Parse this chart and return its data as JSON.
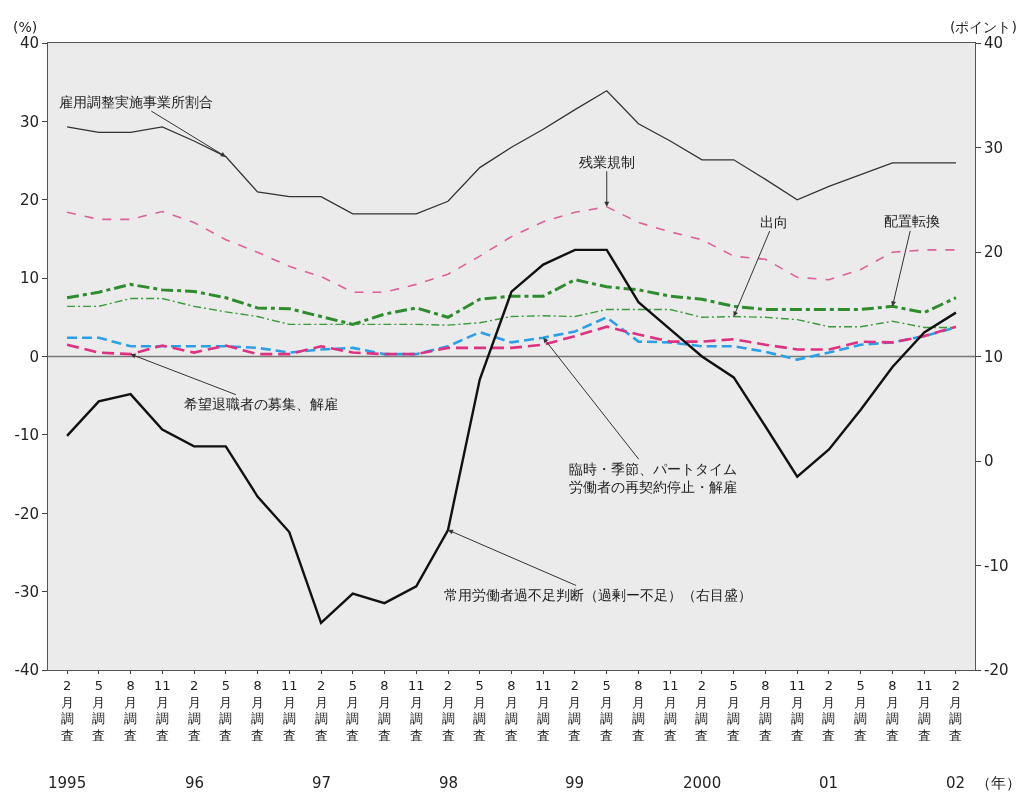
{
  "chart_data": {
    "type": "line",
    "ylabel": "(%)",
    "y2label": "(ポイント)",
    "categories": [
      "2月調査",
      "5月調査",
      "8月調査",
      "11月調査",
      "2月調査",
      "5月調査",
      "8月調査",
      "11月調査",
      "2月調査",
      "5月調査",
      "8月調査",
      "11月調査",
      "2月調査",
      "5月調査",
      "8月調査",
      "11月調査",
      "2月調査",
      "5月調査",
      "8月調査",
      "11月調査",
      "2月調査",
      "5月調査",
      "8月調査",
      "11月調査",
      "2月調査",
      "5月調査",
      "8月調査",
      "11月調査",
      "2月調査"
    ],
    "series": [
      {
        "name": "雇用調整実施事業所割合",
        "color": "#333333",
        "line_style": "solid",
        "values": [
          29.3,
          28.6,
          28.6,
          29.3,
          27.5,
          25.5,
          21,
          20.4,
          20.4,
          18.2,
          18.2,
          18.2,
          19.8,
          24.1,
          26.7,
          29,
          31.5,
          33.9,
          29.7,
          27.5,
          25.1,
          25.1,
          22.6,
          20,
          21.7,
          23.2,
          24.7,
          24.7,
          24.7
        ]
      },
      {
        "name": "残業規制",
        "color": "#e0609a",
        "line_style": "dashed",
        "values": [
          18.4,
          17.5,
          17.5,
          18.5,
          17.1,
          14.9,
          13.3,
          11.5,
          10.2,
          8.2,
          8.2,
          9.2,
          10.5,
          12.8,
          15.3,
          17.2,
          18.4,
          19.1,
          17.1,
          15.9,
          14.9,
          12.8,
          12.4,
          10.1,
          9.8,
          11.1,
          13.3,
          13.6,
          13.6
        ]
      },
      {
        "name": "配置転換",
        "color": "#2e8b2e",
        "line_style": "dashed",
        "values": [
          7.5,
          8.2,
          9.2,
          8.5,
          8.3,
          7.5,
          6.2,
          6.1,
          5.1,
          4.1,
          5.4,
          6.2,
          5,
          7.3,
          7.7,
          7.7,
          9.8,
          8.9,
          8.5,
          7.7,
          7.3,
          6.4,
          6,
          6,
          6,
          6,
          6.4,
          5.6,
          7.5
        ]
      },
      {
        "name": "出向",
        "color": "#3a9a3a",
        "line_style": "dashed",
        "values": [
          6.4,
          6.4,
          7.4,
          7.4,
          6.4,
          5.7,
          5.1,
          4.1,
          4.1,
          4.1,
          4.1,
          4.1,
          4,
          4.3,
          5.1,
          5.2,
          5.1,
          6,
          6,
          6,
          5,
          5.1,
          5,
          4.7,
          3.8,
          3.8,
          4.5,
          3.7,
          3.7
        ]
      },
      {
        "name": "臨時・季節、パートタイム労働者の再契約停止・解雇",
        "color": "#2aa0e8",
        "line_style": "dashed",
        "values": [
          2.4,
          2.4,
          1.3,
          1.3,
          1.3,
          1.3,
          1.1,
          0.5,
          0.9,
          1.1,
          0.3,
          0.3,
          1.3,
          3.1,
          1.8,
          2.4,
          3.2,
          5,
          1.9,
          1.8,
          1.3,
          1.3,
          0.6,
          -0.4,
          0.5,
          1.5,
          1.8,
          2.6,
          3.7
        ]
      },
      {
        "name": "希望退職者の募集、解雇",
        "color": "#e03080",
        "line_style": "dashed",
        "values": [
          1.5,
          0.5,
          0.3,
          1.4,
          0.5,
          1.4,
          0.3,
          0.3,
          1.3,
          0.5,
          0.3,
          0.3,
          1.1,
          1.1,
          1.1,
          1.5,
          2.6,
          3.8,
          2.8,
          1.9,
          1.9,
          2.2,
          1.5,
          0.9,
          0.9,
          1.9,
          1.8,
          2.6,
          3.8
        ]
      },
      {
        "name": "常用労働者過不足判断（過剰ー不足）（右目盛）",
        "color": "#111111",
        "line_style": "solid",
        "axis": "y2",
        "values": [
          2.4,
          5.7,
          6.4,
          3,
          1.4,
          1.4,
          -3.4,
          -6.8,
          -15.5,
          -12.7,
          -13.6,
          -12,
          -6.6,
          7.8,
          16.2,
          18.8,
          20.2,
          20.2,
          15.2,
          12.6,
          10,
          8,
          3.3,
          -1.5,
          1.1,
          4.9,
          9,
          12.3,
          14.2
        ]
      }
    ],
    "ylim": [
      -40,
      40
    ],
    "yticks": [
      -40,
      -30,
      -20,
      -10,
      0,
      10,
      20,
      30,
      40
    ],
    "y2lim": [
      -20,
      40
    ],
    "y2ticks": [
      -20,
      -10,
      0,
      10,
      20,
      30,
      40
    ],
    "ref_lines": [
      {
        "axis": "y",
        "value": 0,
        "color": "#777777",
        "line_style": "solid"
      }
    ],
    "annotations": [
      "1995",
      "96",
      "97",
      "98",
      "99",
      "2000",
      "01",
      "02",
      "（年）"
    ],
    "grid": false,
    "legend": false,
    "marker": "none"
  }
}
